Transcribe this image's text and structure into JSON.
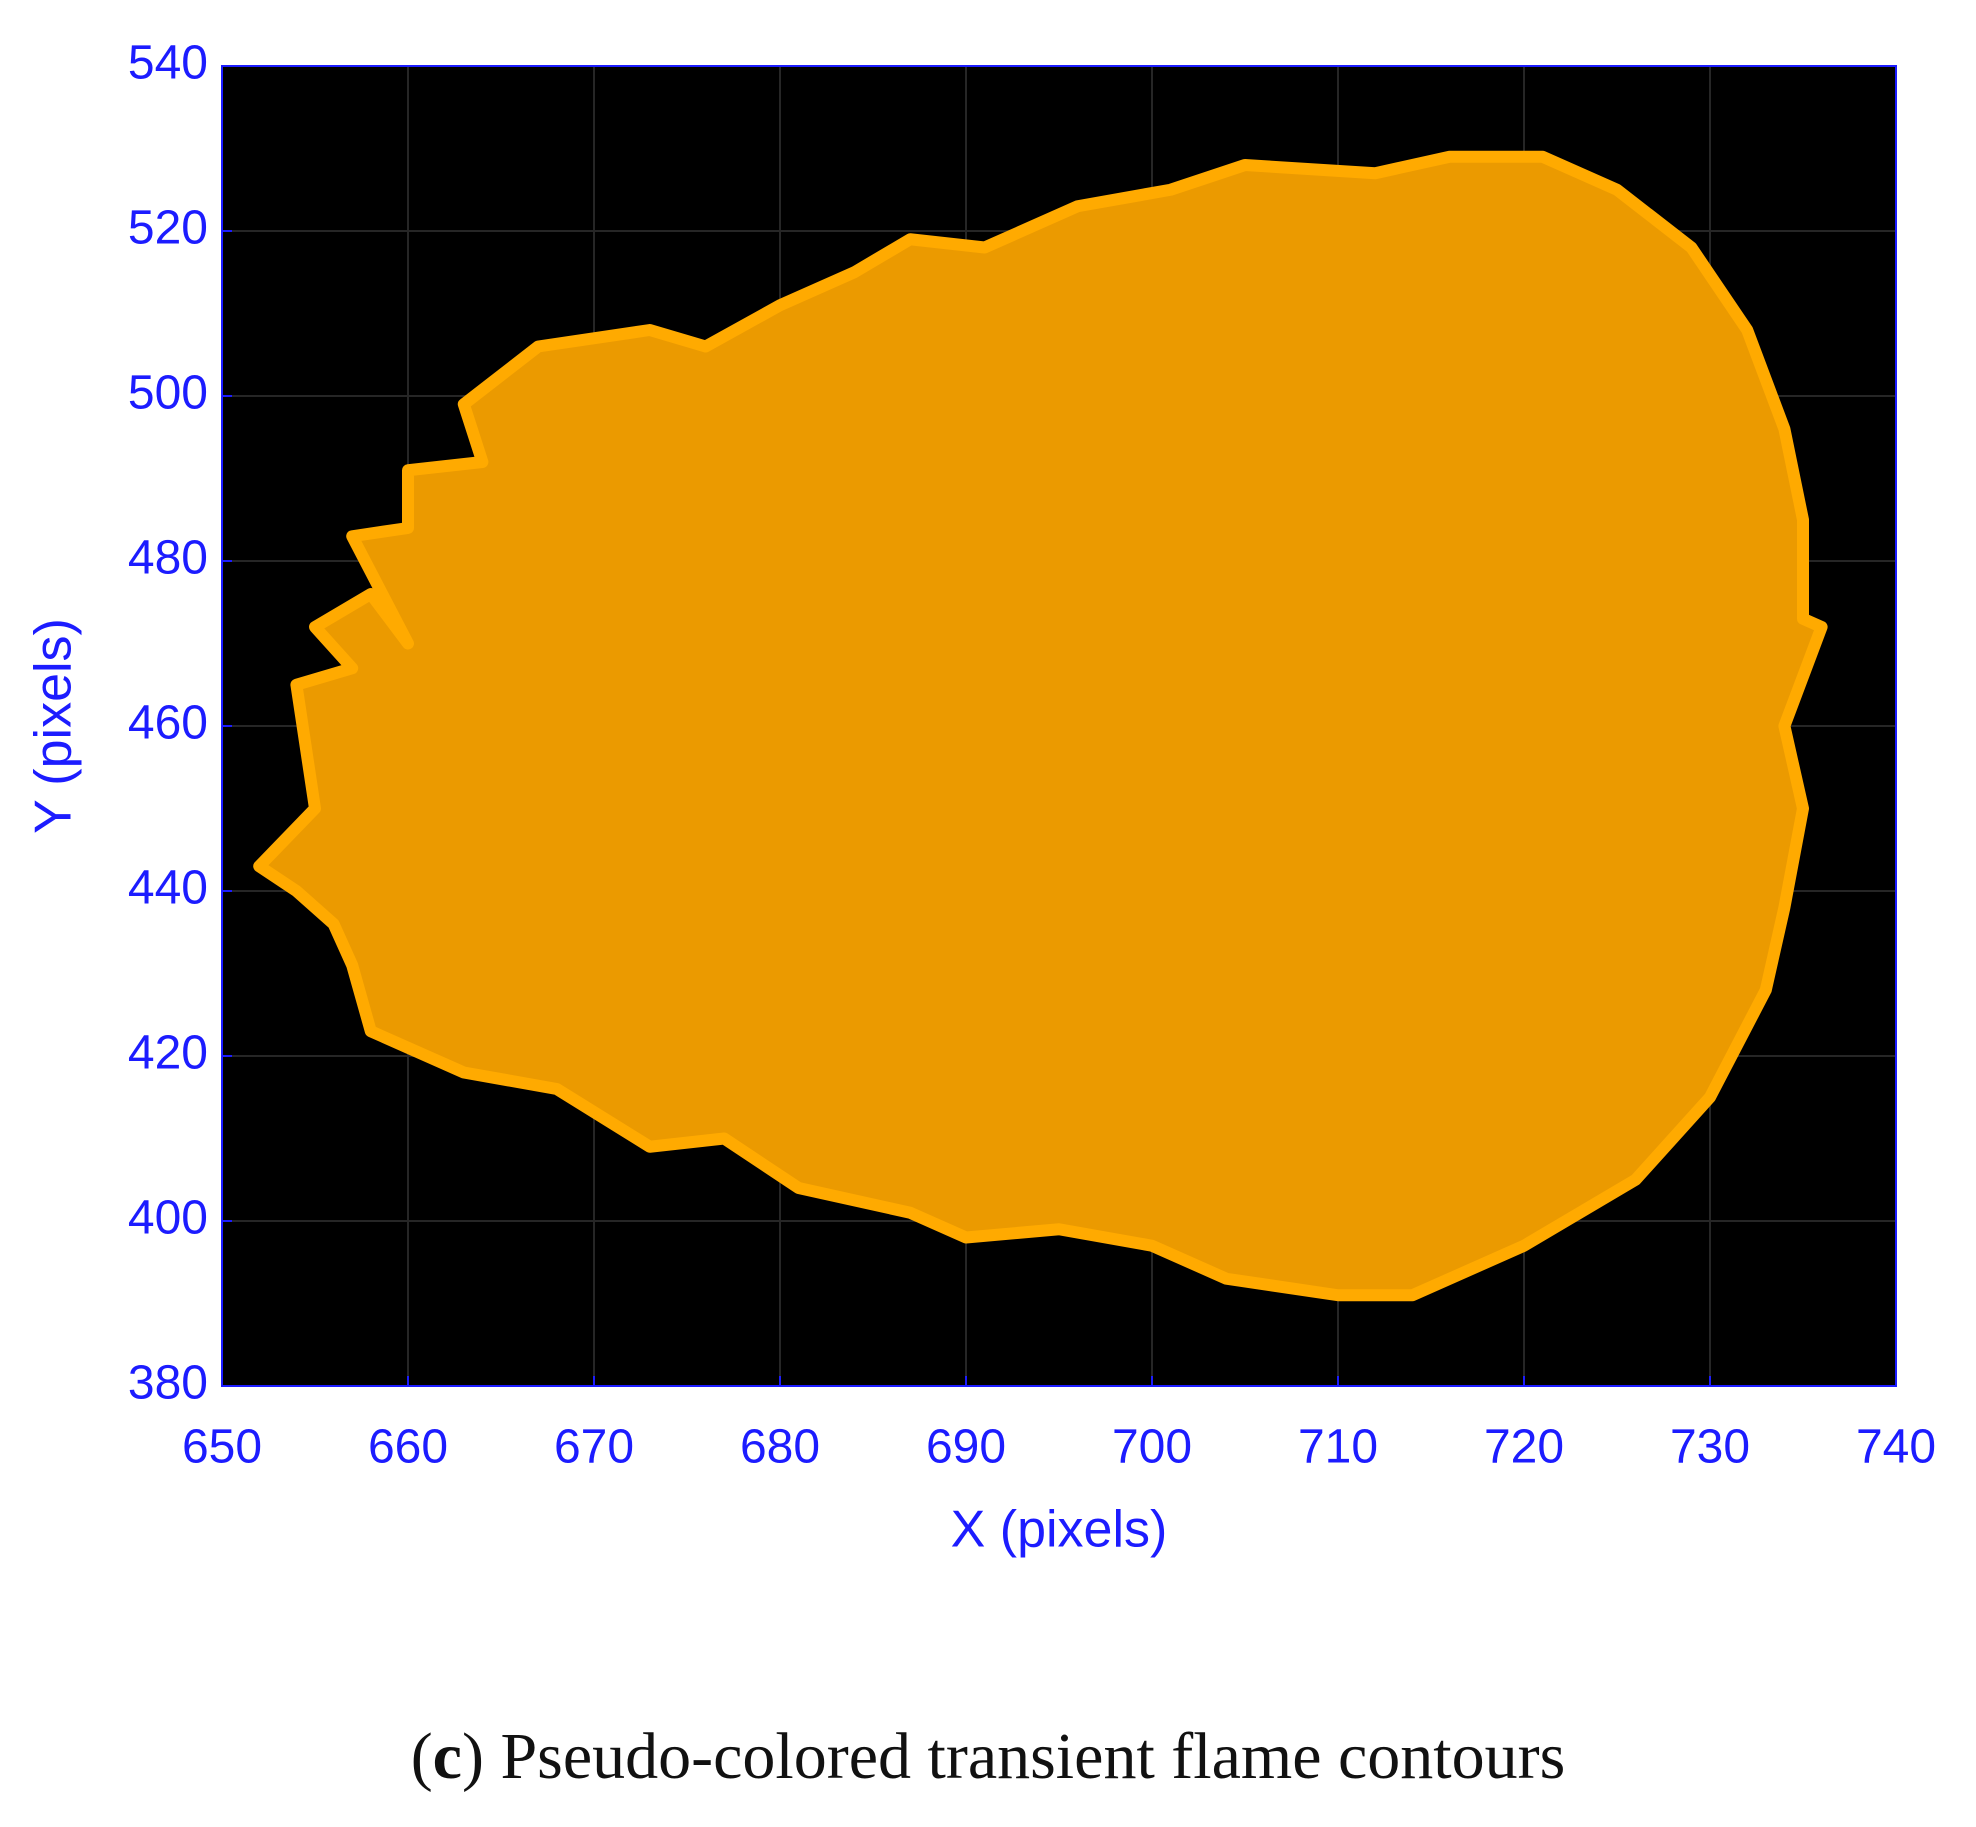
{
  "chart_data": {
    "type": "contour",
    "xlabel": "X (pixels)",
    "ylabel": "Y (pixels)",
    "caption": [
      "(",
      "c",
      ") Pseudo-colored transient flame contours"
    ],
    "xlim": [
      650,
      740
    ],
    "xticks": [
      650,
      660,
      670,
      680,
      690,
      700,
      710,
      720,
      730,
      740
    ],
    "ylim": [
      380,
      540
    ],
    "yticks": [
      380,
      400,
      420,
      440,
      460,
      480,
      500,
      520,
      540
    ],
    "grid": true,
    "background": "#000000",
    "series": [
      {
        "color": "#eb9a00",
        "edgecolor": "#ffaa00",
        "x": [
          652,
          655,
          654,
          657,
          655,
          658,
          660,
          657,
          660,
          660,
          664,
          663,
          667,
          673,
          676,
          680,
          684,
          687,
          691,
          696,
          701,
          705,
          712,
          716,
          721,
          725,
          729,
          732,
          734,
          735,
          735,
          736,
          734,
          735,
          734,
          733,
          730,
          726,
          720,
          714,
          710,
          704,
          700,
          695,
          690,
          687,
          681,
          677,
          673,
          668,
          663,
          658,
          657,
          656,
          654
        ],
        "values": [
          443,
          450,
          465,
          467,
          472,
          476,
          470,
          483,
          484,
          491,
          492,
          499,
          506,
          508,
          506,
          511,
          515,
          519,
          518,
          523,
          525,
          528,
          527,
          529,
          529,
          525,
          518,
          508,
          496,
          485,
          473,
          472,
          460,
          450,
          438,
          428,
          415,
          405,
          397,
          391,
          391,
          393,
          397,
          399,
          398,
          401,
          404,
          410,
          409,
          416,
          418,
          423,
          431,
          436,
          440
        ]
      }
    ]
  }
}
